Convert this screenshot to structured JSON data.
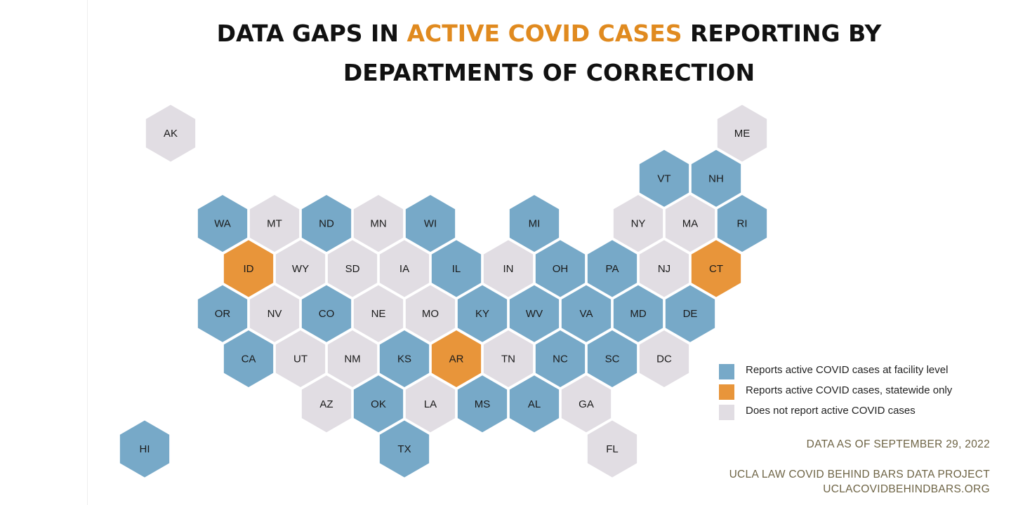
{
  "title": {
    "line1_pre": "DATA GAPS IN ",
    "line1_highlight": "ACTIVE COVID CASES",
    "line1_post": " REPORTING BY",
    "line2": "DEPARTMENTS OF CORRECTION"
  },
  "colors": {
    "facility": "#77a9c8",
    "statewide": "#e8953a",
    "none": "#e1dde3",
    "highlight": "#e08a1f"
  },
  "legend": [
    {
      "key": "facility",
      "label": "Reports active COVID cases at facility level"
    },
    {
      "key": "statewide",
      "label": "Reports active COVID cases, statewide only"
    },
    {
      "key": "none",
      "label": "Does not report active COVID cases"
    }
  ],
  "states": [
    {
      "abbr": "AK",
      "row": 0,
      "col": 0,
      "status": "none"
    },
    {
      "abbr": "ME",
      "row": 0,
      "col": 11,
      "status": "none"
    },
    {
      "abbr": "VT",
      "row": 1,
      "col": 9.5,
      "status": "facility"
    },
    {
      "abbr": "NH",
      "row": 1,
      "col": 10.5,
      "status": "facility"
    },
    {
      "abbr": "WA",
      "row": 2,
      "col": 1,
      "status": "facility"
    },
    {
      "abbr": "MT",
      "row": 2,
      "col": 2,
      "status": "none"
    },
    {
      "abbr": "ND",
      "row": 2,
      "col": 3,
      "status": "facility"
    },
    {
      "abbr": "MN",
      "row": 2,
      "col": 4,
      "status": "none"
    },
    {
      "abbr": "WI",
      "row": 2,
      "col": 5,
      "status": "facility"
    },
    {
      "abbr": "MI",
      "row": 2,
      "col": 7,
      "status": "facility"
    },
    {
      "abbr": "NY",
      "row": 2,
      "col": 9,
      "status": "none"
    },
    {
      "abbr": "MA",
      "row": 2,
      "col": 10,
      "status": "none"
    },
    {
      "abbr": "RI",
      "row": 2,
      "col": 11,
      "status": "facility"
    },
    {
      "abbr": "ID",
      "row": 3,
      "col": 1.5,
      "status": "statewide"
    },
    {
      "abbr": "WY",
      "row": 3,
      "col": 2.5,
      "status": "none"
    },
    {
      "abbr": "SD",
      "row": 3,
      "col": 3.5,
      "status": "none"
    },
    {
      "abbr": "IA",
      "row": 3,
      "col": 4.5,
      "status": "none"
    },
    {
      "abbr": "IL",
      "row": 3,
      "col": 5.5,
      "status": "facility"
    },
    {
      "abbr": "IN",
      "row": 3,
      "col": 6.5,
      "status": "none"
    },
    {
      "abbr": "OH",
      "row": 3,
      "col": 7.5,
      "status": "facility"
    },
    {
      "abbr": "PA",
      "row": 3,
      "col": 8.5,
      "status": "facility"
    },
    {
      "abbr": "NJ",
      "row": 3,
      "col": 9.5,
      "status": "none"
    },
    {
      "abbr": "CT",
      "row": 3,
      "col": 10.5,
      "status": "statewide"
    },
    {
      "abbr": "OR",
      "row": 4,
      "col": 1,
      "status": "facility"
    },
    {
      "abbr": "NV",
      "row": 4,
      "col": 2,
      "status": "none"
    },
    {
      "abbr": "CO",
      "row": 4,
      "col": 3,
      "status": "facility"
    },
    {
      "abbr": "NE",
      "row": 4,
      "col": 4,
      "status": "none"
    },
    {
      "abbr": "MO",
      "row": 4,
      "col": 5,
      "status": "none"
    },
    {
      "abbr": "KY",
      "row": 4,
      "col": 6,
      "status": "facility"
    },
    {
      "abbr": "WV",
      "row": 4,
      "col": 7,
      "status": "facility"
    },
    {
      "abbr": "VA",
      "row": 4,
      "col": 8,
      "status": "facility"
    },
    {
      "abbr": "MD",
      "row": 4,
      "col": 9,
      "status": "facility"
    },
    {
      "abbr": "DE",
      "row": 4,
      "col": 10,
      "status": "facility"
    },
    {
      "abbr": "CA",
      "row": 5,
      "col": 1.5,
      "status": "facility"
    },
    {
      "abbr": "UT",
      "row": 5,
      "col": 2.5,
      "status": "none"
    },
    {
      "abbr": "NM",
      "row": 5,
      "col": 3.5,
      "status": "none"
    },
    {
      "abbr": "KS",
      "row": 5,
      "col": 4.5,
      "status": "facility"
    },
    {
      "abbr": "AR",
      "row": 5,
      "col": 5.5,
      "status": "statewide"
    },
    {
      "abbr": "TN",
      "row": 5,
      "col": 6.5,
      "status": "none"
    },
    {
      "abbr": "NC",
      "row": 5,
      "col": 7.5,
      "status": "facility"
    },
    {
      "abbr": "SC",
      "row": 5,
      "col": 8.5,
      "status": "facility"
    },
    {
      "abbr": "DC",
      "row": 5,
      "col": 9.5,
      "status": "none"
    },
    {
      "abbr": "AZ",
      "row": 6,
      "col": 3,
      "status": "none"
    },
    {
      "abbr": "OK",
      "row": 6,
      "col": 4,
      "status": "facility"
    },
    {
      "abbr": "LA",
      "row": 6,
      "col": 5,
      "status": "none"
    },
    {
      "abbr": "MS",
      "row": 6,
      "col": 6,
      "status": "facility"
    },
    {
      "abbr": "AL",
      "row": 6,
      "col": 7,
      "status": "facility"
    },
    {
      "abbr": "GA",
      "row": 6,
      "col": 8,
      "status": "none"
    },
    {
      "abbr": "HI",
      "row": 7,
      "col": -0.5,
      "status": "facility"
    },
    {
      "abbr": "TX",
      "row": 7,
      "col": 4.5,
      "status": "facility"
    },
    {
      "abbr": "FL",
      "row": 7,
      "col": 8.5,
      "status": "none"
    }
  ],
  "notes": {
    "date": "DATA AS OF SEPTEMBER 29, 2022",
    "source_line1": "UCLA LAW COVID BEHIND BARS DATA PROJECT",
    "source_line2": "UCLACOVIDBEHINDBARS.ORG"
  }
}
